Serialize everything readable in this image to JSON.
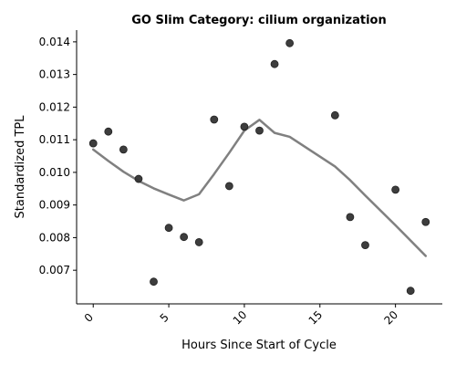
{
  "chart_data": {
    "type": "scatter",
    "title": "GO Slim Category: cilium organization",
    "xlabel": "Hours Since Start of Cycle",
    "ylabel": "Standardized TPL",
    "xlim": [
      -1.1,
      23.1
    ],
    "ylim": [
      0.00597,
      0.01436
    ],
    "xticks": [
      0,
      5,
      10,
      15,
      20
    ],
    "yticks": [
      0.007,
      0.008,
      0.009,
      0.01,
      0.011,
      0.012,
      0.013,
      0.014
    ],
    "ytick_labels": [
      "0.007",
      "0.008",
      "0.009",
      "0.010",
      "0.011",
      "0.012",
      "0.013",
      "0.014"
    ],
    "grid": false,
    "series": [
      {
        "kind": "points",
        "color": "#333333",
        "points": [
          {
            "x": 0,
            "y": 0.01089
          },
          {
            "x": 1,
            "y": 0.01125
          },
          {
            "x": 2,
            "y": 0.0107
          },
          {
            "x": 3,
            "y": 0.0098
          },
          {
            "x": 4,
            "y": 0.00665
          },
          {
            "x": 5,
            "y": 0.0083
          },
          {
            "x": 6,
            "y": 0.00802
          },
          {
            "x": 7,
            "y": 0.00786
          },
          {
            "x": 8,
            "y": 0.01162
          },
          {
            "x": 9,
            "y": 0.00958
          },
          {
            "x": 10,
            "y": 0.0114
          },
          {
            "x": 11,
            "y": 0.01128
          },
          {
            "x": 12,
            "y": 0.01332
          },
          {
            "x": 13,
            "y": 0.01396
          },
          {
            "x": 16,
            "y": 0.01175
          },
          {
            "x": 17,
            "y": 0.00863
          },
          {
            "x": 18,
            "y": 0.00777
          },
          {
            "x": 20,
            "y": 0.00947
          },
          {
            "x": 21,
            "y": 0.00637
          },
          {
            "x": 22,
            "y": 0.00848
          }
        ]
      },
      {
        "kind": "line",
        "color": "#808080",
        "points": [
          {
            "x": 0,
            "y": 0.0107
          },
          {
            "x": 1,
            "y": 0.01035
          },
          {
            "x": 2,
            "y": 0.01002
          },
          {
            "x": 3,
            "y": 0.00974
          },
          {
            "x": 4,
            "y": 0.00951
          },
          {
            "x": 5,
            "y": 0.00932
          },
          {
            "x": 6,
            "y": 0.00914
          },
          {
            "x": 7,
            "y": 0.00933
          },
          {
            "x": 8,
            "y": 0.00995
          },
          {
            "x": 9,
            "y": 0.0106
          },
          {
            "x": 10,
            "y": 0.01128
          },
          {
            "x": 11,
            "y": 0.01161
          },
          {
            "x": 12,
            "y": 0.01121
          },
          {
            "x": 13,
            "y": 0.01109
          },
          {
            "x": 16,
            "y": 0.01018
          },
          {
            "x": 17,
            "y": 0.00976
          },
          {
            "x": 18,
            "y": 0.00929
          },
          {
            "x": 20,
            "y": 0.00838
          },
          {
            "x": 21,
            "y": 0.00791
          },
          {
            "x": 22,
            "y": 0.00744
          }
        ]
      }
    ]
  }
}
